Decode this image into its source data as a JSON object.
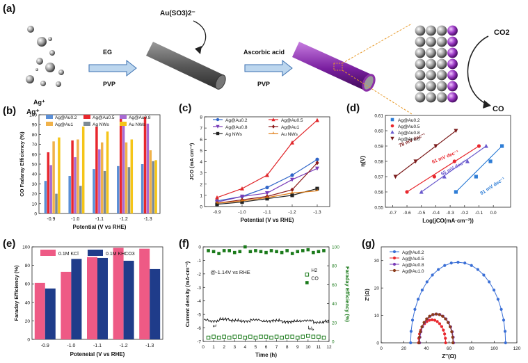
{
  "panels": {
    "a": {
      "label": "(a)",
      "ion_top": "Au(SO3)2⁻",
      "ion_left": "Ag⁺",
      "step1_top": "EG",
      "step1_bottom": "PVP",
      "step2_top": "Ascorbic acid",
      "step2_bottom": "PVP",
      "co2": "CO2",
      "co": "CO",
      "colors": {
        "grey": "#8a8a8a",
        "purple": "#8b2fa8",
        "arrow": "#bcd6ee"
      }
    },
    "b": {
      "label": "(b)"
    },
    "c": {
      "label": "(c)"
    },
    "d": {
      "label": "(d)"
    },
    "e": {
      "label": "(e)"
    },
    "f": {
      "label": "(f)"
    },
    "g": {
      "label": "(g)"
    }
  },
  "chart_data": [
    {
      "id": "b",
      "type": "bar",
      "xlabel": "Potential (V vs RHE)",
      "ylabel": "CO Fadaray Efficiency (%)",
      "categories": [
        "-0.9",
        "-1.0",
        "-1.1",
        "-1.2",
        "-1.3"
      ],
      "ylim": [
        0,
        100
      ],
      "yticks": [
        0,
        10,
        20,
        30,
        40,
        50,
        60,
        70,
        80,
        90,
        100
      ],
      "series": [
        {
          "name": "Ag@Au0.2",
          "color": "#5b8fd6",
          "values": [
            33,
            38,
            45,
            48,
            50
          ]
        },
        {
          "name": "Ag@Au0.5",
          "color": "#e8272d",
          "values": [
            62,
            74,
            88,
            99,
            98
          ]
        },
        {
          "name": "Ag@Au0.8",
          "color": "#a86bd2",
          "values": [
            49,
            57,
            65,
            93,
            91
          ]
        },
        {
          "name": "Ag@Au1",
          "color": "#f0b24a",
          "values": [
            73,
            75,
            72,
            72,
            64
          ]
        },
        {
          "name": "Ag NWs",
          "color": "#7d8a94",
          "values": [
            20,
            28,
            43,
            47,
            53
          ]
        },
        {
          "name": "Au NWs",
          "color": "#f5c518",
          "values": [
            77,
            88,
            83,
            75,
            54
          ]
        }
      ]
    },
    {
      "id": "c",
      "type": "line",
      "xlabel": "Potential (V vs RHE)",
      "ylabel": "JCO (mA cm⁻²)",
      "x": [
        -0.9,
        -1.0,
        -1.1,
        -1.2,
        -1.3
      ],
      "xlim": [
        -0.85,
        -1.35
      ],
      "ylim": [
        0,
        8
      ],
      "xticks": [
        -0.9,
        -1.0,
        -1.1,
        -1.2,
        -1.3
      ],
      "yticks": [
        0,
        1,
        2,
        3,
        4,
        5,
        6,
        7,
        8
      ],
      "series": [
        {
          "name": "Ag@Au0.2",
          "color": "#2e64c8",
          "marker": "circle",
          "values": [
            0.5,
            0.9,
            1.7,
            2.8,
            4.2
          ]
        },
        {
          "name": "Ag@Au0.5",
          "color": "#e0262a",
          "marker": "triangle",
          "values": [
            0.8,
            1.6,
            2.8,
            5.7,
            7.7
          ]
        },
        {
          "name": "Ag@Au0.8",
          "color": "#7a3db8",
          "marker": "triangle-down",
          "values": [
            0.4,
            0.9,
            1.2,
            2.4,
            3.4
          ]
        },
        {
          "name": "Ag@Au1",
          "color": "#8b1a1a",
          "marker": "diamond",
          "values": [
            0.3,
            0.6,
            0.9,
            1.5,
            3.9
          ]
        },
        {
          "name": "Ag NWs",
          "color": "#222222",
          "marker": "square",
          "values": [
            0.2,
            0.4,
            0.7,
            1.0,
            1.6
          ]
        },
        {
          "name": "Au NWs",
          "color": "#e07a10",
          "marker": "star",
          "values": [
            0.3,
            0.5,
            0.8,
            1.2,
            1.4
          ]
        }
      ]
    },
    {
      "id": "d",
      "type": "line",
      "xlabel": "Log(jCO(mA·cm⁻²))",
      "ylabel": "η(V)",
      "xlim": [
        -0.75,
        0.12
      ],
      "ylim": [
        0.55,
        0.61
      ],
      "xticks": [
        -0.7,
        -0.6,
        -0.5,
        -0.4,
        -0.3,
        -0.2,
        -0.1,
        0.0
      ],
      "yticks": [
        0.55,
        0.56,
        0.57,
        0.58,
        0.59,
        0.6,
        0.61
      ],
      "series": [
        {
          "name": "Ag@Au0.2",
          "color": "#2e7dd6",
          "marker": "square",
          "slope_label": "91 mV dec⁻¹",
          "points": [
            [
              -0.26,
              0.56
            ],
            [
              -0.12,
              0.57
            ],
            [
              -0.02,
              0.58
            ],
            [
              0.06,
              0.59
            ]
          ]
        },
        {
          "name": "Ag@Au0.5",
          "color": "#e8272d",
          "marker": "circle",
          "slope_label": "61 mV dec⁻¹",
          "points": [
            [
              -0.6,
              0.56
            ],
            [
              -0.41,
              0.57
            ],
            [
              -0.27,
              0.58
            ],
            [
              -0.1,
              0.59
            ]
          ]
        },
        {
          "name": "Ag@Au0.8",
          "color": "#6a5acd",
          "marker": "triangle",
          "slope_label": "65 mV dec⁻¹",
          "points": [
            [
              -0.5,
              0.56
            ],
            [
              -0.34,
              0.57
            ],
            [
              -0.18,
              0.58
            ],
            [
              -0.05,
              0.59
            ]
          ]
        },
        {
          "name": "Ag@Au1.0",
          "color": "#7a1a1a",
          "marker": "triangle-down",
          "slope_label": "78 mV dec⁻¹",
          "points": [
            [
              -0.68,
              0.57
            ],
            [
              -0.54,
              0.58
            ],
            [
              -0.4,
              0.59
            ],
            [
              -0.26,
              0.6
            ]
          ]
        }
      ]
    },
    {
      "id": "e",
      "type": "bar",
      "xlabel": "Poteneial (V vs RHE)",
      "ylabel": "Faraday Efficiency (%)",
      "categories": [
        "-0.9",
        "-1.0",
        "-1.1",
        "-1.2",
        "-1.3"
      ],
      "ylim": [
        0,
        100
      ],
      "yticks": [
        0,
        20,
        40,
        60,
        80,
        100
      ],
      "series": [
        {
          "name": "0.1M KCl",
          "color": "#ee5a85",
          "values": [
            61,
            73,
            89,
            99,
            98
          ]
        },
        {
          "name": "0.1M KHCO3",
          "color": "#1f3c8a",
          "values": [
            55,
            87,
            88,
            85,
            76
          ]
        }
      ]
    },
    {
      "id": "f",
      "type": "scatter",
      "xlabel": "Time (h)",
      "ylabel": "Current density (mA·cm⁻²)",
      "y2label": "Faraday Efficiency (%)",
      "annotation": "@-1.14V vs RHE",
      "xlim": [
        0,
        12
      ],
      "ylim": [
        0,
        -7
      ],
      "y2lim": [
        0,
        100
      ],
      "xticks": [
        0,
        1,
        2,
        3,
        4,
        5,
        6,
        7,
        8,
        9,
        10,
        11,
        12
      ],
      "yticks": [
        0,
        -1,
        -2,
        -3,
        -4,
        -5,
        -6,
        -7
      ],
      "y2ticks": [
        0,
        20,
        40,
        60,
        80,
        100
      ],
      "current_density": [
        -5.4,
        -5.5,
        -5.35,
        -5.45,
        -5.5,
        -5.4,
        -5.5,
        -5.45,
        -5.55,
        -5.5,
        -5.45,
        -5.6,
        -5.5
      ],
      "series": [
        {
          "name": "CO",
          "color": "#1a7a1a",
          "marker": "filled-square",
          "x": [
            0.5,
            1,
            1.5,
            2,
            2.5,
            3,
            3.5,
            4,
            4.5,
            5,
            5.5,
            6,
            6.5,
            7,
            7.5,
            8,
            8.5,
            9,
            9.5,
            10,
            10.5,
            11,
            11.5
          ],
          "values": [
            96,
            95,
            93,
            96,
            96,
            94,
            95,
            100,
            95,
            96,
            95,
            94,
            96,
            95,
            94,
            96,
            93,
            95,
            96,
            97,
            94,
            95,
            96
          ]
        },
        {
          "name": "H2",
          "color": "#1a7a1a",
          "marker": "open-square",
          "x": [
            0.5,
            1,
            1.5,
            2,
            2.5,
            3,
            3.5,
            4,
            4.5,
            5,
            5.5,
            6,
            6.5,
            7,
            7.5,
            8,
            8.5,
            9,
            9.5,
            10,
            10.5,
            11,
            11.5
          ],
          "values": [
            4,
            5,
            4,
            5,
            4,
            5,
            5,
            4,
            5,
            4,
            5,
            5,
            4,
            5,
            4,
            5,
            5,
            4,
            5,
            6,
            5,
            5,
            4
          ]
        }
      ]
    },
    {
      "id": "g",
      "type": "line",
      "xlabel": "Z''(Ω)",
      "ylabel": "Z'(Ω)",
      "xlim": [
        0,
        120
      ],
      "ylim": [
        0,
        35
      ],
      "xticks": [
        0,
        20,
        40,
        60,
        80,
        100,
        120
      ],
      "yticks": [
        0,
        10,
        20,
        30
      ],
      "series": [
        {
          "name": "Ag@Au0.2",
          "color": "#3a6fd6",
          "marker": "circle",
          "center": 68,
          "radius": 42
        },
        {
          "name": "Ag@Au0.5",
          "color": "#e8272d",
          "marker": "circle",
          "center": 45,
          "radius": 12
        },
        {
          "name": "Ag@Au0.8",
          "color": "#7a3db8",
          "marker": "circle",
          "center": 49,
          "radius": 15
        },
        {
          "name": "Ag@Au1.0",
          "color": "#8b3a1a",
          "marker": "circle",
          "center": 48.5,
          "radius": 15
        }
      ]
    }
  ]
}
